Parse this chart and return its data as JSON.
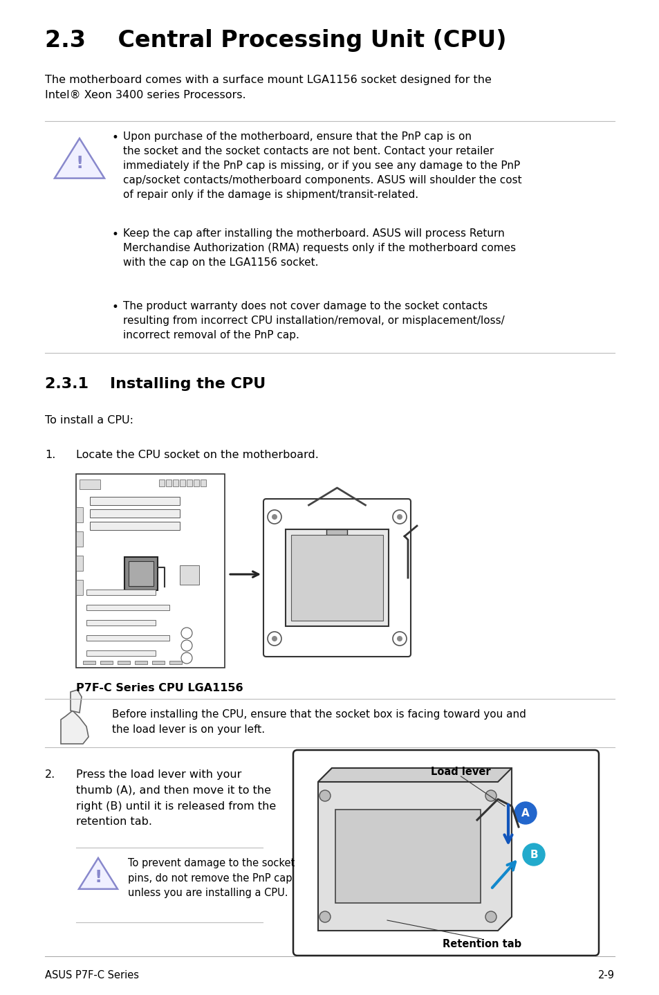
{
  "bg_color": "#ffffff",
  "footer_left": "ASUS P7F-C Series",
  "footer_right": "2-9",
  "title": "2.3    Central Processing Unit (CPU)",
  "intro_text": "The motherboard comes with a surface mount LGA1156 socket designed for the\nIntel® Xeon 3400 series Processors.",
  "warning_bullets": [
    "Upon purchase of the motherboard, ensure that the PnP cap is on\nthe socket and the socket contacts are not bent. Contact your retailer\nimmediately if the PnP cap is missing, or if you see any damage to the PnP\ncap/socket contacts/motherboard components. ASUS will shoulder the cost\nof repair only if the damage is shipment/transit-related.",
    "Keep the cap after installing the motherboard. ASUS will process Return\nMerchandise Authorization (RMA) requests only if the motherboard comes\nwith the cap on the LGA1156 socket.",
    "The product warranty does not cover damage to the socket contacts\nresulting from incorrect CPU installation/removal, or misplacement/loss/\nincorrect removal of the PnP cap."
  ],
  "section_title": "2.3.1    Installing the CPU",
  "install_intro": "To install a CPU:",
  "step1_num": "1.",
  "step1_text": "Locate the CPU socket on the motherboard.",
  "cpu_image_caption": "P7F-C Series CPU LGA1156",
  "note_text": "Before installing the CPU, ensure that the socket box is facing toward you and\nthe load lever is on your left.",
  "step2_num": "2.",
  "step2_text": "Press the load lever with your\nthumb (A), and then move it to the\nright (B) until it is released from the\nretention tab.",
  "warning2_text": "To prevent damage to the socket\npins, do not remove the PnP cap\nunless you are installing a CPU.",
  "load_lever_label": "Load lever",
  "label_A": "A",
  "label_B": "B",
  "retention_tab_label": "Retention tab",
  "warn_tri_color": "#8888cc",
  "text_color": "#000000",
  "line_color": "#bbbbbb"
}
